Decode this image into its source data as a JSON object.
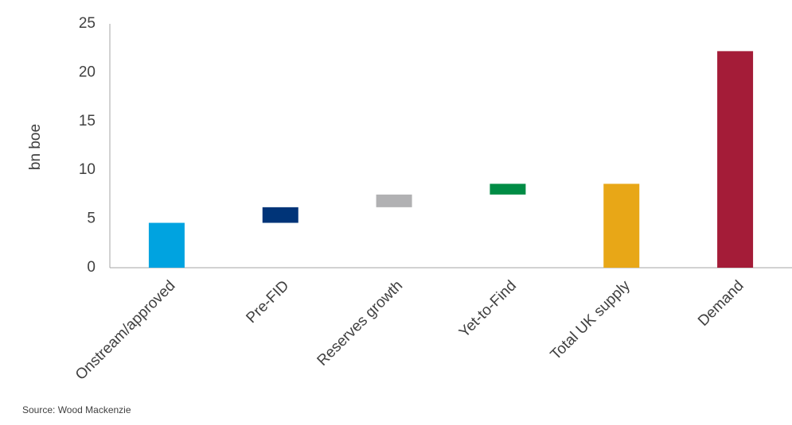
{
  "chart_data": {
    "type": "waterfall",
    "y_label": "bn boe",
    "source": "Source: Wood Mackenzie",
    "categories": [
      "Onstream/approved",
      "Pre-FID",
      "Reserves growth",
      "Yet-to-Find",
      "Total UK supply",
      "Demand"
    ],
    "values": [
      4.6,
      1.6,
      1.3,
      1.1,
      8.6,
      22.2
    ],
    "totals": [
      true,
      false,
      false,
      false,
      true,
      true
    ],
    "colors": [
      "#00a3e0",
      "#003478",
      "#b1b1b3",
      "#008c45",
      "#e8a717",
      "#a41c38"
    ],
    "ylim": [
      0,
      25
    ],
    "yticks": [
      0,
      5,
      10,
      15,
      20,
      25
    ],
    "grid": false
  }
}
